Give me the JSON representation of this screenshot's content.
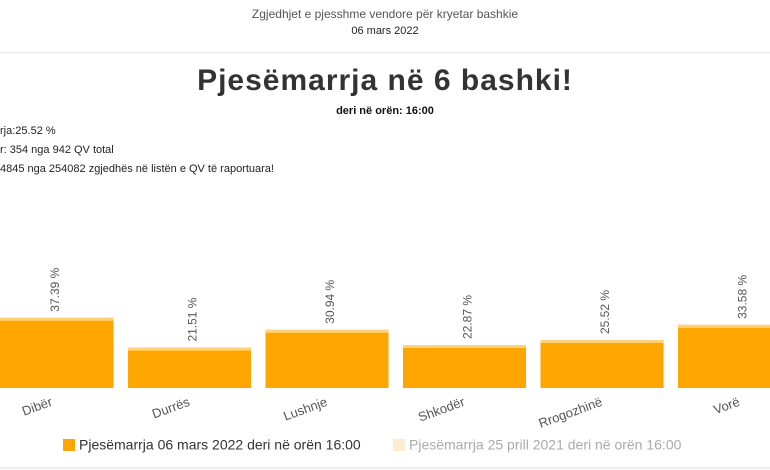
{
  "header": {
    "title": "Zgjedhjet e pjesshme vendore për kryetar bashkie",
    "date": "06 mars 2022"
  },
  "info": [
    "rja:25.52 %",
    "r: 354 nga 942 QV total",
    "4845 nga 254082 zgjedhës në listën e QV të raportuara!"
  ],
  "chart_data": {
    "type": "bar",
    "title": "Pjesëmarrja në 6 bashki!",
    "subtitle": "deri në orën: 16:00",
    "categories": [
      "Dibër",
      "Durrës",
      "Lushnje",
      "Shkodër",
      "Rrogozhinë",
      "Vorë"
    ],
    "series": [
      {
        "name": "Pjesëmarrja 06 mars 2022 deri në orën 16:00",
        "color": "#ffa500",
        "values": [
          37.39,
          21.51,
          30.94,
          22.87,
          25.52,
          33.58
        ],
        "value_labels": [
          "37.39 %",
          "21.51 %",
          "30.94 %",
          "22.87 %",
          "25.52 %",
          "33.58 %"
        ]
      },
      {
        "name": "Pjesëmarrja 25 prill 2021 deri në orën 16:00",
        "color": "#fcecd2",
        "values": [
          null,
          null,
          null,
          null,
          null,
          null
        ]
      }
    ],
    "ylim": [
      0,
      100
    ]
  }
}
